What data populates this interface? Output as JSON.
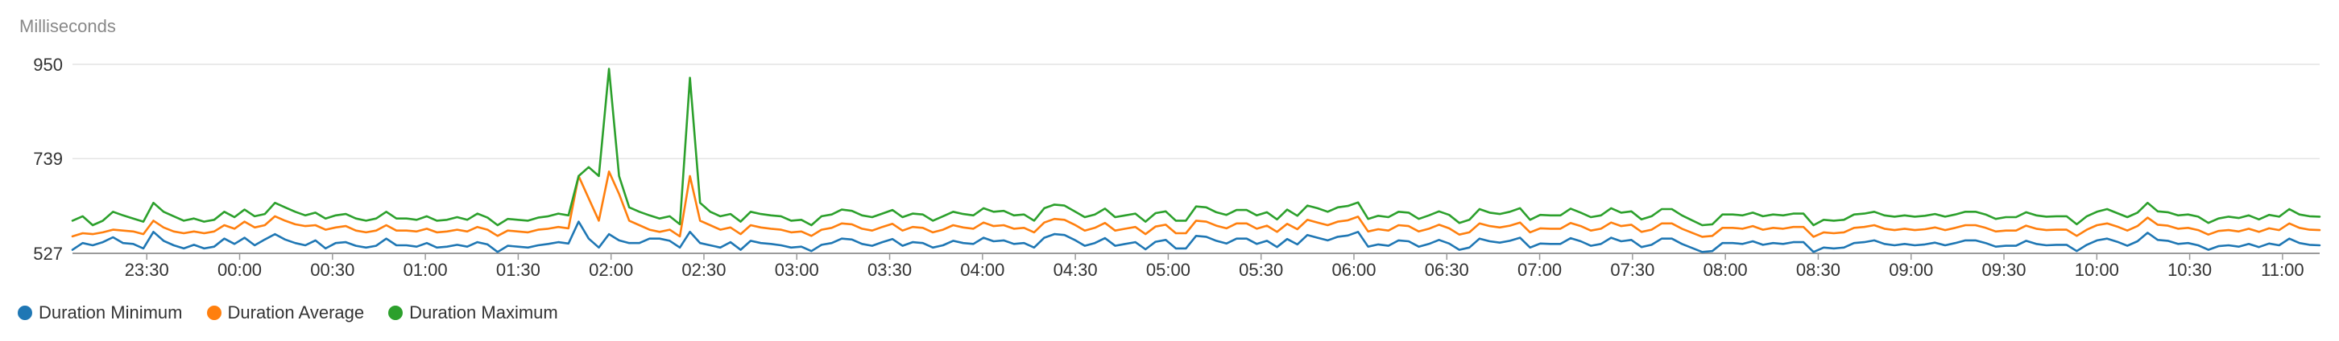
{
  "chart_data": {
    "type": "line",
    "ylabel": "Milliseconds",
    "ylim": [
      527,
      950
    ],
    "yticks": [
      527,
      739,
      950
    ],
    "xtick_labels": [
      "23:30",
      "00:00",
      "00:30",
      "01:00",
      "01:30",
      "02:00",
      "02:30",
      "03:00",
      "03:30",
      "04:00",
      "04:30",
      "05:00",
      "05:30",
      "06:00",
      "06:30",
      "07:00",
      "07:30",
      "08:00",
      "08:30",
      "09:00",
      "09:30",
      "10:00",
      "10:30",
      "11:00"
    ],
    "x_range_hours": [
      23.1,
      35.2
    ],
    "grid": true,
    "legend_position": "bottom-left",
    "series": [
      {
        "name": "Duration Minimum",
        "color": "#1f77b4",
        "values": [
          535,
          550,
          545,
          552,
          563,
          550,
          548,
          538,
          575,
          555,
          545,
          538,
          546,
          538,
          542,
          560,
          548,
          562,
          545,
          558,
          570,
          558,
          550,
          545,
          556,
          538,
          550,
          552,
          544,
          540,
          544,
          560,
          545,
          545,
          542,
          550,
          540,
          542,
          546,
          542,
          552,
          547,
          530,
          544,
          542,
          540,
          545,
          548,
          552,
          549,
          598,
          560,
          540,
          570,
          556,
          550,
          550,
          560,
          560,
          555,
          540,
          575,
          550,
          545,
          540,
          552,
          535,
          555,
          550,
          548,
          545,
          540,
          542,
          532,
          546,
          550,
          560,
          558,
          548,
          544,
          552,
          559,
          544,
          552,
          550,
          540,
          545,
          555,
          550,
          548,
          562,
          554,
          556,
          548,
          550,
          540,
          562,
          570,
          568,
          557,
          544,
          550,
          561,
          544,
          548,
          552,
          536,
          553,
          557,
          538,
          538,
          566,
          564,
          555,
          549,
          560,
          560,
          548,
          555,
          541,
          559,
          547,
          568,
          562,
          556,
          564,
          567,
          575,
          542,
          547,
          544,
          556,
          554,
          542,
          548,
          557,
          549,
          535,
          540,
          560,
          554,
          551,
          555,
          562,
          540,
          549,
          548,
          548,
          561,
          554,
          544,
          548,
          562,
          554,
          557,
          541,
          546,
          560,
          560,
          548,
          539,
          530,
          532,
          550,
          550,
          548,
          554,
          546,
          550,
          548,
          552,
          552,
          530,
          540,
          538,
          540,
          550,
          552,
          556,
          548,
          545,
          548,
          545,
          547,
          551,
          545,
          550,
          556,
          556,
          550,
          542,
          544,
          544,
          555,
          548,
          545,
          546,
          546,
          532,
          546,
          556,
          560,
          553,
          544,
          554,
          573,
          557,
          555,
          548,
          550,
          545,
          535,
          543,
          545,
          542,
          548,
          541,
          549,
          545,
          560,
          550,
          546,
          545
        ]
      },
      {
        "name": "Duration Average",
        "color": "#ff7f0e",
        "values": [
          565,
          572,
          570,
          574,
          580,
          578,
          576,
          570,
          600,
          585,
          576,
          572,
          576,
          572,
          576,
          590,
          582,
          598,
          585,
          590,
          610,
          600,
          592,
          588,
          590,
          580,
          585,
          588,
          578,
          574,
          578,
          590,
          578,
          578,
          576,
          582,
          574,
          576,
          580,
          576,
          586,
          580,
          566,
          578,
          576,
          574,
          580,
          582,
          586,
          583,
          700,
          650,
          600,
          710,
          660,
          600,
          590,
          580,
          575,
          580,
          565,
          700,
          600,
          590,
          580,
          585,
          570,
          590,
          585,
          582,
          580,
          574,
          576,
          566,
          580,
          584,
          594,
          592,
          582,
          578,
          586,
          593,
          578,
          586,
          584,
          574,
          580,
          590,
          585,
          582,
          596,
          588,
          590,
          582,
          584,
          574,
          596,
          604,
          602,
          591,
          578,
          584,
          595,
          578,
          582,
          586,
          570,
          587,
          591,
          572,
          572,
          600,
          598,
          589,
          583,
          594,
          594,
          582,
          589,
          575,
          593,
          581,
          602,
          596,
          590,
          598,
          601,
          609,
          576,
          581,
          578,
          590,
          588,
          576,
          582,
          591,
          583,
          569,
          574,
          594,
          588,
          585,
          589,
          596,
          574,
          583,
          582,
          582,
          595,
          588,
          578,
          582,
          596,
          588,
          591,
          575,
          580,
          594,
          594,
          582,
          573,
          564,
          566,
          584,
          584,
          582,
          588,
          580,
          584,
          582,
          586,
          586,
          564,
          574,
          572,
          574,
          584,
          586,
          590,
          582,
          579,
          582,
          579,
          581,
          585,
          579,
          584,
          590,
          590,
          584,
          576,
          578,
          578,
          589,
          582,
          579,
          580,
          580,
          566,
          580,
          590,
          594,
          587,
          578,
          588,
          607,
          591,
          589,
          582,
          584,
          579,
          569,
          577,
          579,
          576,
          582,
          575,
          583,
          579,
          594,
          584,
          580,
          579
        ]
      },
      {
        "name": "Duration Maximum",
        "color": "#2ca02c",
        "values": [
          600,
          610,
          590,
          600,
          620,
          612,
          605,
          598,
          640,
          620,
          610,
          600,
          605,
          598,
          602,
          620,
          608,
          625,
          610,
          615,
          640,
          630,
          620,
          612,
          618,
          605,
          612,
          615,
          605,
          600,
          605,
          620,
          605,
          605,
          602,
          610,
          600,
          602,
          608,
          602,
          616,
          607,
          590,
          604,
          602,
          600,
          607,
          610,
          616,
          612,
          700,
          720,
          700,
          940,
          700,
          630,
          620,
          612,
          605,
          610,
          592,
          920,
          640,
          620,
          610,
          615,
          598,
          620,
          615,
          612,
          610,
          600,
          602,
          590,
          610,
          614,
          625,
          622,
          612,
          608,
          616,
          624,
          608,
          616,
          614,
          600,
          610,
          620,
          615,
          612,
          628,
          620,
          622,
          612,
          614,
          600,
          628,
          636,
          634,
          621,
          608,
          614,
          627,
          608,
          612,
          616,
          598,
          617,
          621,
          600,
          600,
          632,
          630,
          619,
          613,
          624,
          624,
          612,
          619,
          603,
          625,
          611,
          634,
          628,
          620,
          630,
          633,
          641,
          604,
          611,
          608,
          620,
          618,
          604,
          612,
          621,
          613,
          595,
          602,
          626,
          618,
          615,
          620,
          628,
          602,
          613,
          612,
          612,
          627,
          618,
          608,
          612,
          628,
          618,
          621,
          603,
          610,
          626,
          626,
          612,
          601,
          590,
          592,
          614,
          614,
          612,
          618,
          610,
          614,
          612,
          616,
          616,
          590,
          602,
          600,
          602,
          614,
          616,
          620,
          612,
          609,
          612,
          609,
          611,
          615,
          609,
          614,
          620,
          620,
          614,
          604,
          608,
          608,
          619,
          612,
          609,
          610,
          610,
          592,
          610,
          620,
          626,
          617,
          608,
          618,
          640,
          621,
          619,
          612,
          614,
          609,
          595,
          605,
          609,
          606,
          612,
          603,
          613,
          609,
          626,
          614,
          610,
          609
        ]
      }
    ]
  }
}
